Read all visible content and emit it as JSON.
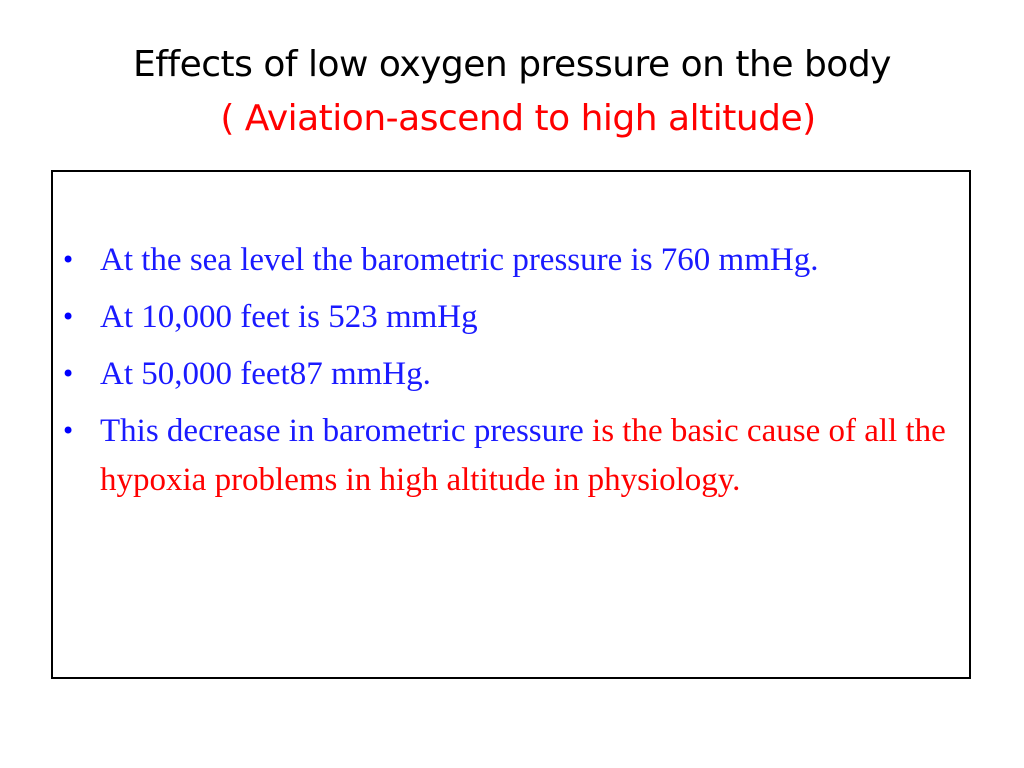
{
  "slide": {
    "title": "Effects of low oxygen pressure on the body",
    "subtitle": "( Aviation-ascend to high altitude)"
  },
  "bullets": [
    {
      "text": "At the sea level the barometric pressure is 760 mmHg."
    },
    {
      "text": "At 10,000 feet is 523 mmHg"
    },
    {
      "text": "At  50,000  feet87 mmHg."
    },
    {
      "text_blue": "This decrease in barometric pressure ",
      "text_red": "is the basic cause of all the hypoxia problems in high altitude in physiology."
    }
  ],
  "colors": {
    "title": "#000000",
    "subtitle": "#ff0000",
    "bullet_text": "#1a1aff",
    "emphasis": "#ff0000"
  }
}
